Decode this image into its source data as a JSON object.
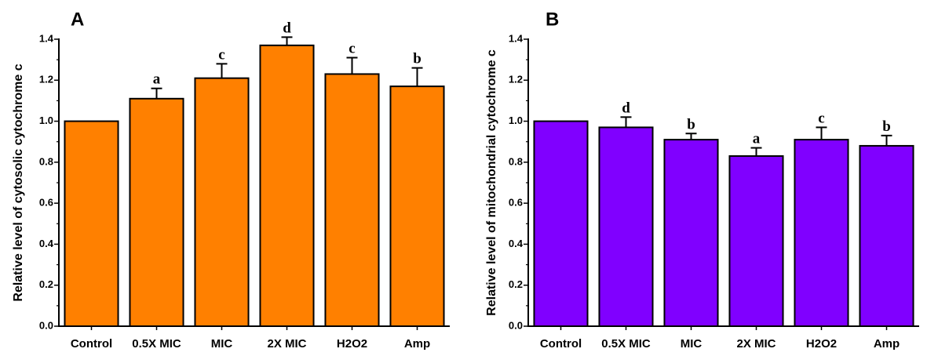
{
  "chart_data": [
    {
      "panel": "A",
      "type": "bar",
      "ylabel": "Relative level of cytosolic cytochrome c",
      "xlabel": "",
      "ylim": [
        0,
        1.4
      ],
      "ytick_step": 0.2,
      "ytick_labels": [
        "0.0",
        "0.2",
        "0.4",
        "0.6",
        "0.8",
        "1.0",
        "1.2",
        "1.4"
      ],
      "categories": [
        "Control",
        "0.5X MIC",
        "MIC",
        "2X MIC",
        "H2O2",
        "Amp"
      ],
      "values": [
        1.0,
        1.11,
        1.21,
        1.37,
        1.23,
        1.17
      ],
      "errors": [
        0,
        0.05,
        0.07,
        0.04,
        0.08,
        0.09
      ],
      "significance": [
        "",
        "a",
        "c",
        "d",
        "c",
        "b"
      ],
      "bar_color": "#ff8000",
      "grid": false
    },
    {
      "panel": "B",
      "type": "bar",
      "ylabel": "Relative level of mitochondrial cytochrome c",
      "xlabel": "",
      "ylim": [
        0,
        1.4
      ],
      "ytick_step": 0.2,
      "ytick_labels": [
        "0.0",
        "0.2",
        "0.4",
        "0.6",
        "0.8",
        "1.0",
        "1.2",
        "1.4"
      ],
      "categories": [
        "Control",
        "0.5X MIC",
        "MIC",
        "2X MIC",
        "H2O2",
        "Amp"
      ],
      "values": [
        1.0,
        0.97,
        0.91,
        0.83,
        0.91,
        0.88
      ],
      "errors": [
        0,
        0.05,
        0.03,
        0.04,
        0.06,
        0.05
      ],
      "significance": [
        "",
        "d",
        "b",
        "a",
        "c",
        "b"
      ],
      "bar_color": "#8000ff",
      "grid": false
    }
  ]
}
